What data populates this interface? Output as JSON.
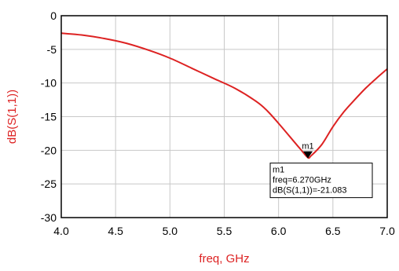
{
  "chart_data": {
    "type": "line",
    "xlabel": "freq, GHz",
    "ylabel": "dB(S(1,1))",
    "xlim": [
      4.0,
      7.0
    ],
    "ylim": [
      -30,
      0
    ],
    "x_ticks": [
      "4.0",
      "4.5",
      "5.0",
      "5.5",
      "6.0",
      "6.5",
      "7.0"
    ],
    "y_ticks": [
      "0",
      "-5",
      "-10",
      "-15",
      "-20",
      "-25",
      "-30"
    ],
    "grid": true,
    "colors": {
      "series": "#dd2222",
      "label": "#dd2222",
      "grid": "#c8c8c8",
      "frame": "#000000"
    },
    "series": [
      {
        "x": [
          4.0,
          4.2,
          4.4,
          4.6,
          4.8,
          5.0,
          5.2,
          5.4,
          5.6,
          5.8,
          5.9,
          6.0,
          6.1,
          6.2,
          6.27,
          6.3,
          6.4,
          6.5,
          6.6,
          6.7,
          6.8,
          6.9,
          7.0
        ],
        "y": [
          -2.6,
          -2.9,
          -3.4,
          -4.1,
          -5.1,
          -6.3,
          -7.8,
          -9.3,
          -10.8,
          -12.8,
          -14.2,
          -16.0,
          -17.9,
          -19.8,
          -21.08,
          -20.8,
          -19.1,
          -16.5,
          -14.3,
          -12.5,
          -10.8,
          -9.3,
          -7.9
        ]
      }
    ],
    "marker": {
      "name": "m1",
      "x": 6.27,
      "y": -21.083,
      "lines": [
        "m1",
        "freq=6.270GHz",
        "dB(S(1,1))=-21.083"
      ]
    }
  }
}
